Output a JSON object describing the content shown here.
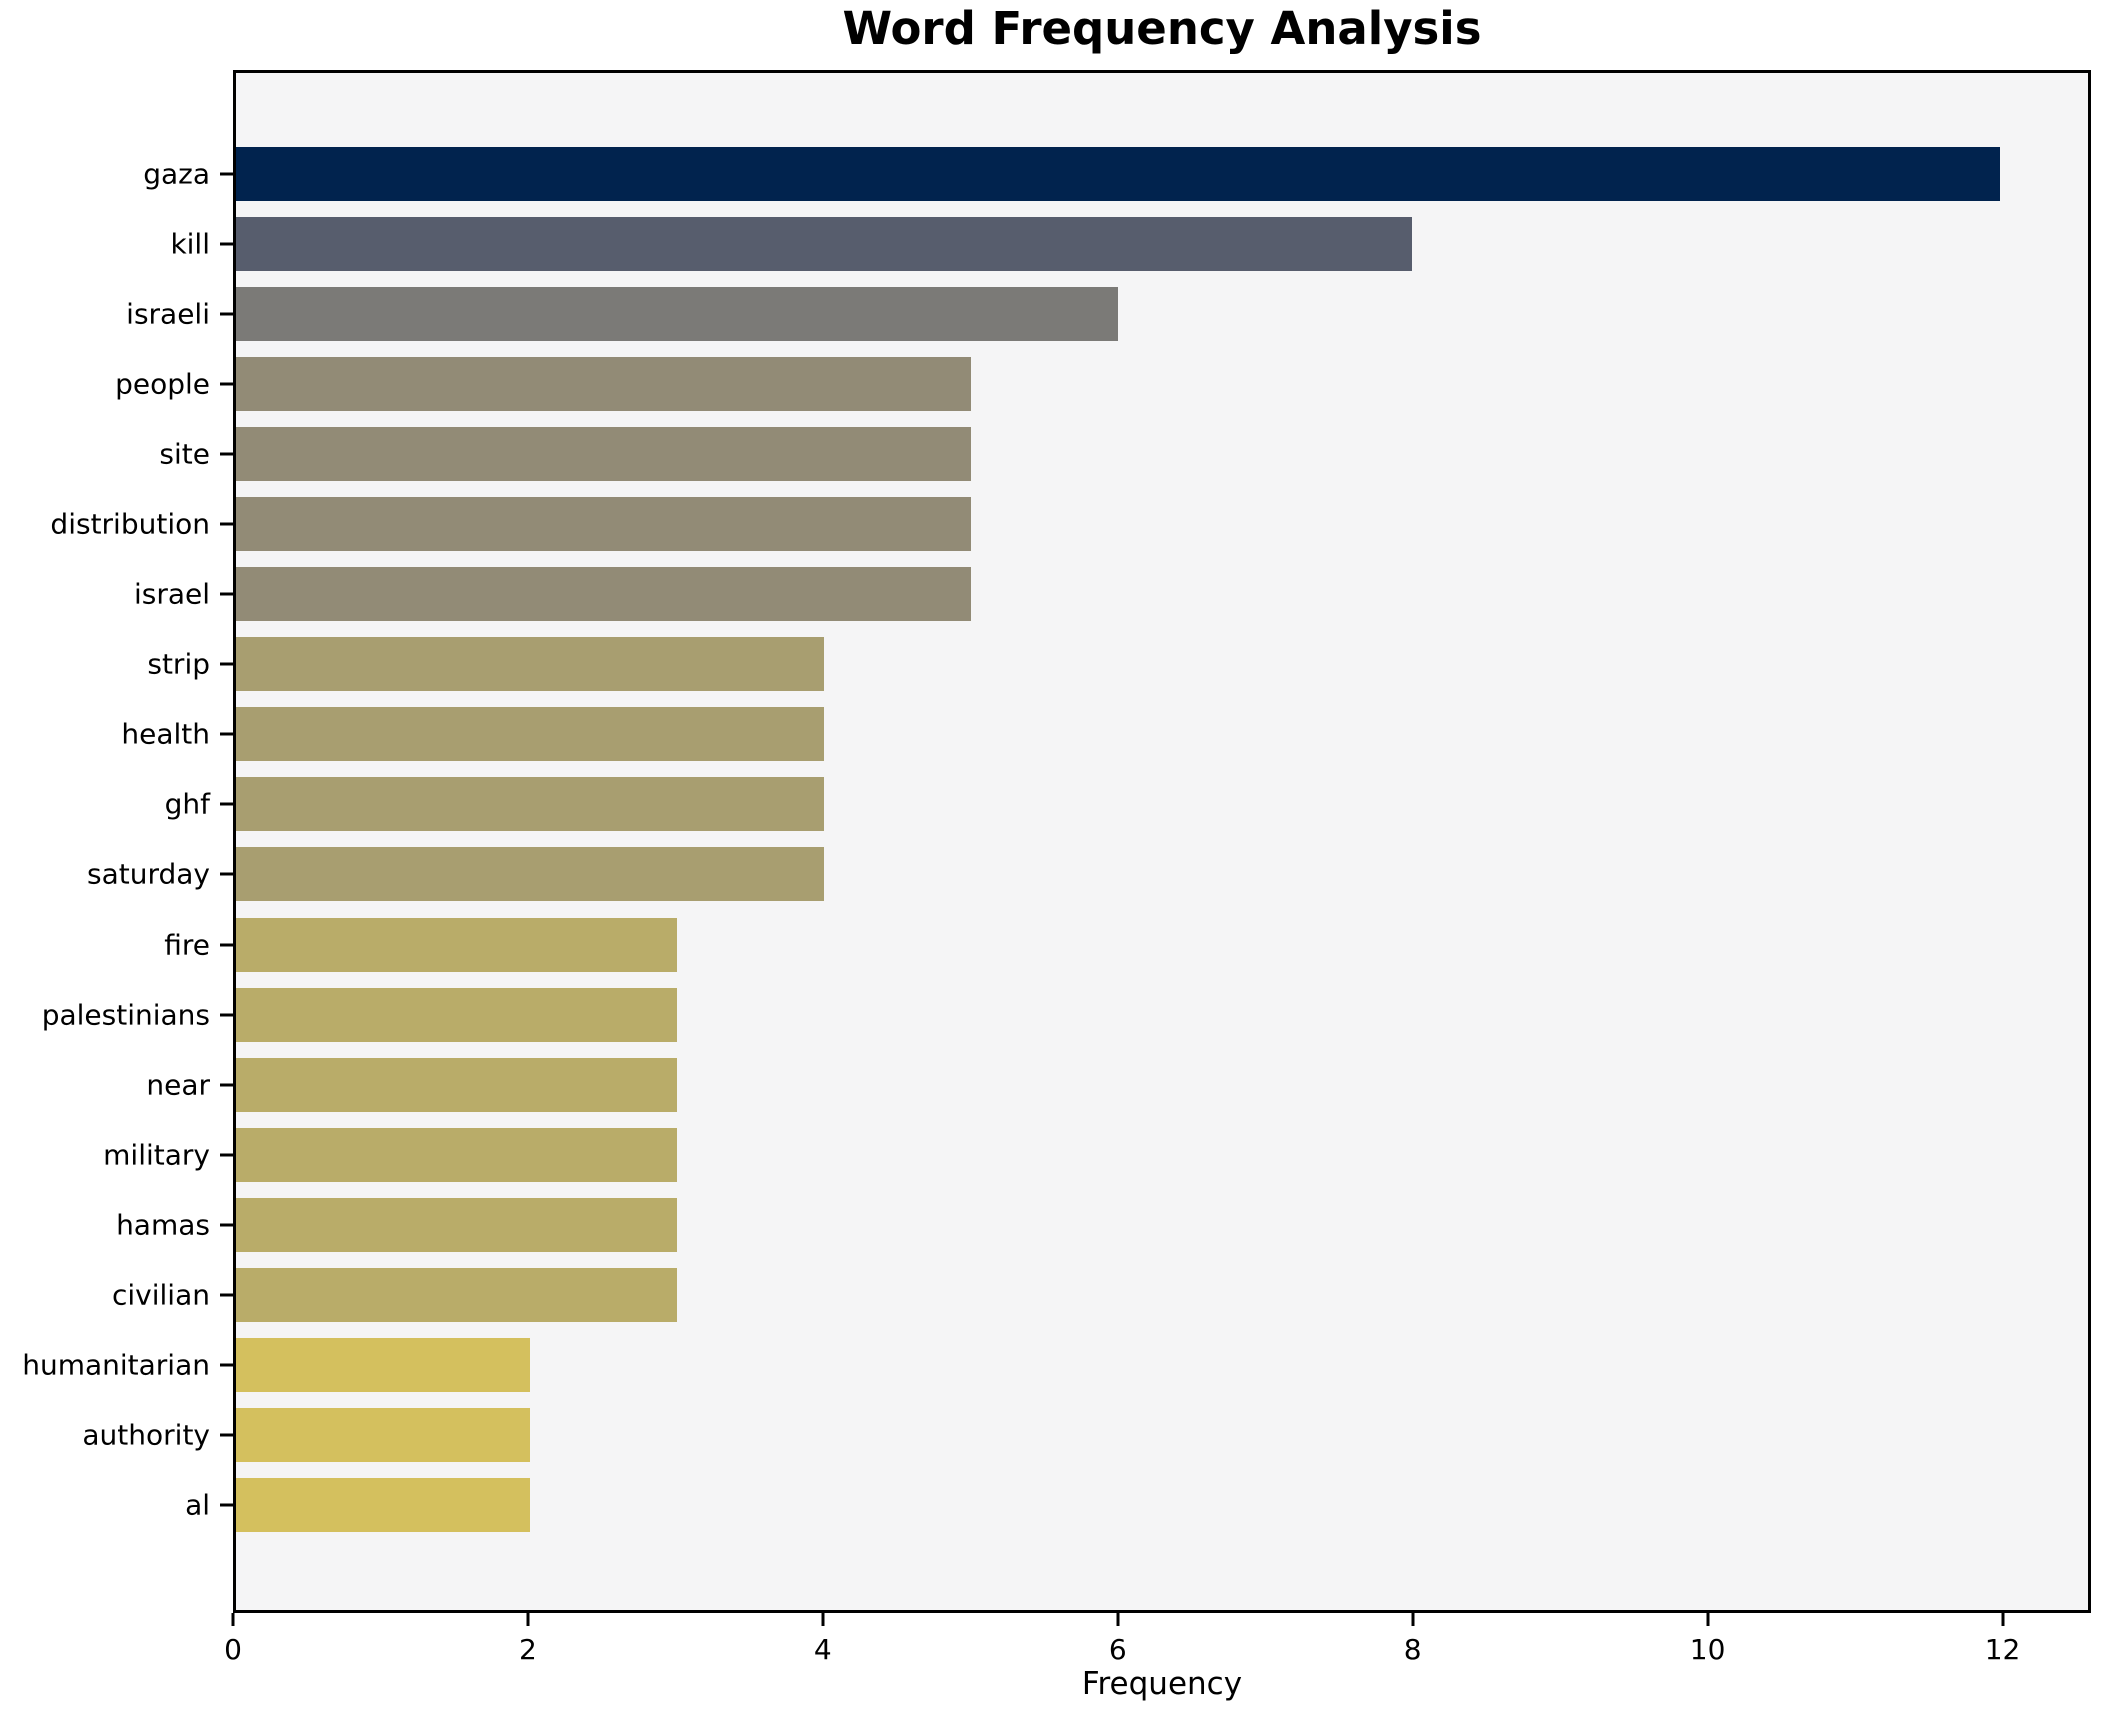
{
  "chart_data": {
    "type": "bar",
    "orientation": "horizontal",
    "title": "Word Frequency Analysis",
    "xlabel": "Frequency",
    "ylabel": "",
    "categories": [
      "gaza",
      "kill",
      "israeli",
      "people",
      "site",
      "distribution",
      "israel",
      "strip",
      "health",
      "ghf",
      "saturday",
      "fire",
      "palestinians",
      "near",
      "military",
      "hamas",
      "civilian",
      "humanitarian",
      "authority",
      "al"
    ],
    "values": [
      12,
      8,
      6,
      5,
      5,
      5,
      5,
      4,
      4,
      4,
      4,
      3,
      3,
      3,
      3,
      3,
      3,
      2,
      2,
      2
    ],
    "bar_colors": [
      "#01234e",
      "#575d6d",
      "#7b7a77",
      "#928b76",
      "#928b76",
      "#928b76",
      "#928b76",
      "#a89e70",
      "#a89e70",
      "#a89e70",
      "#a89e70",
      "#b9ac69",
      "#b9ac69",
      "#b9ac69",
      "#b9ac69",
      "#b9ac69",
      "#b9ac69",
      "#d4c05e",
      "#d4c05e",
      "#d4c05e"
    ],
    "xticks": [
      0,
      2,
      4,
      6,
      8,
      10,
      12
    ],
    "xlim": [
      0,
      12.6
    ],
    "grid": false,
    "legend": false,
    "plot_bg": "#f5f5f6",
    "figure_bg": "#ffffff",
    "spine_color": "#000000"
  }
}
